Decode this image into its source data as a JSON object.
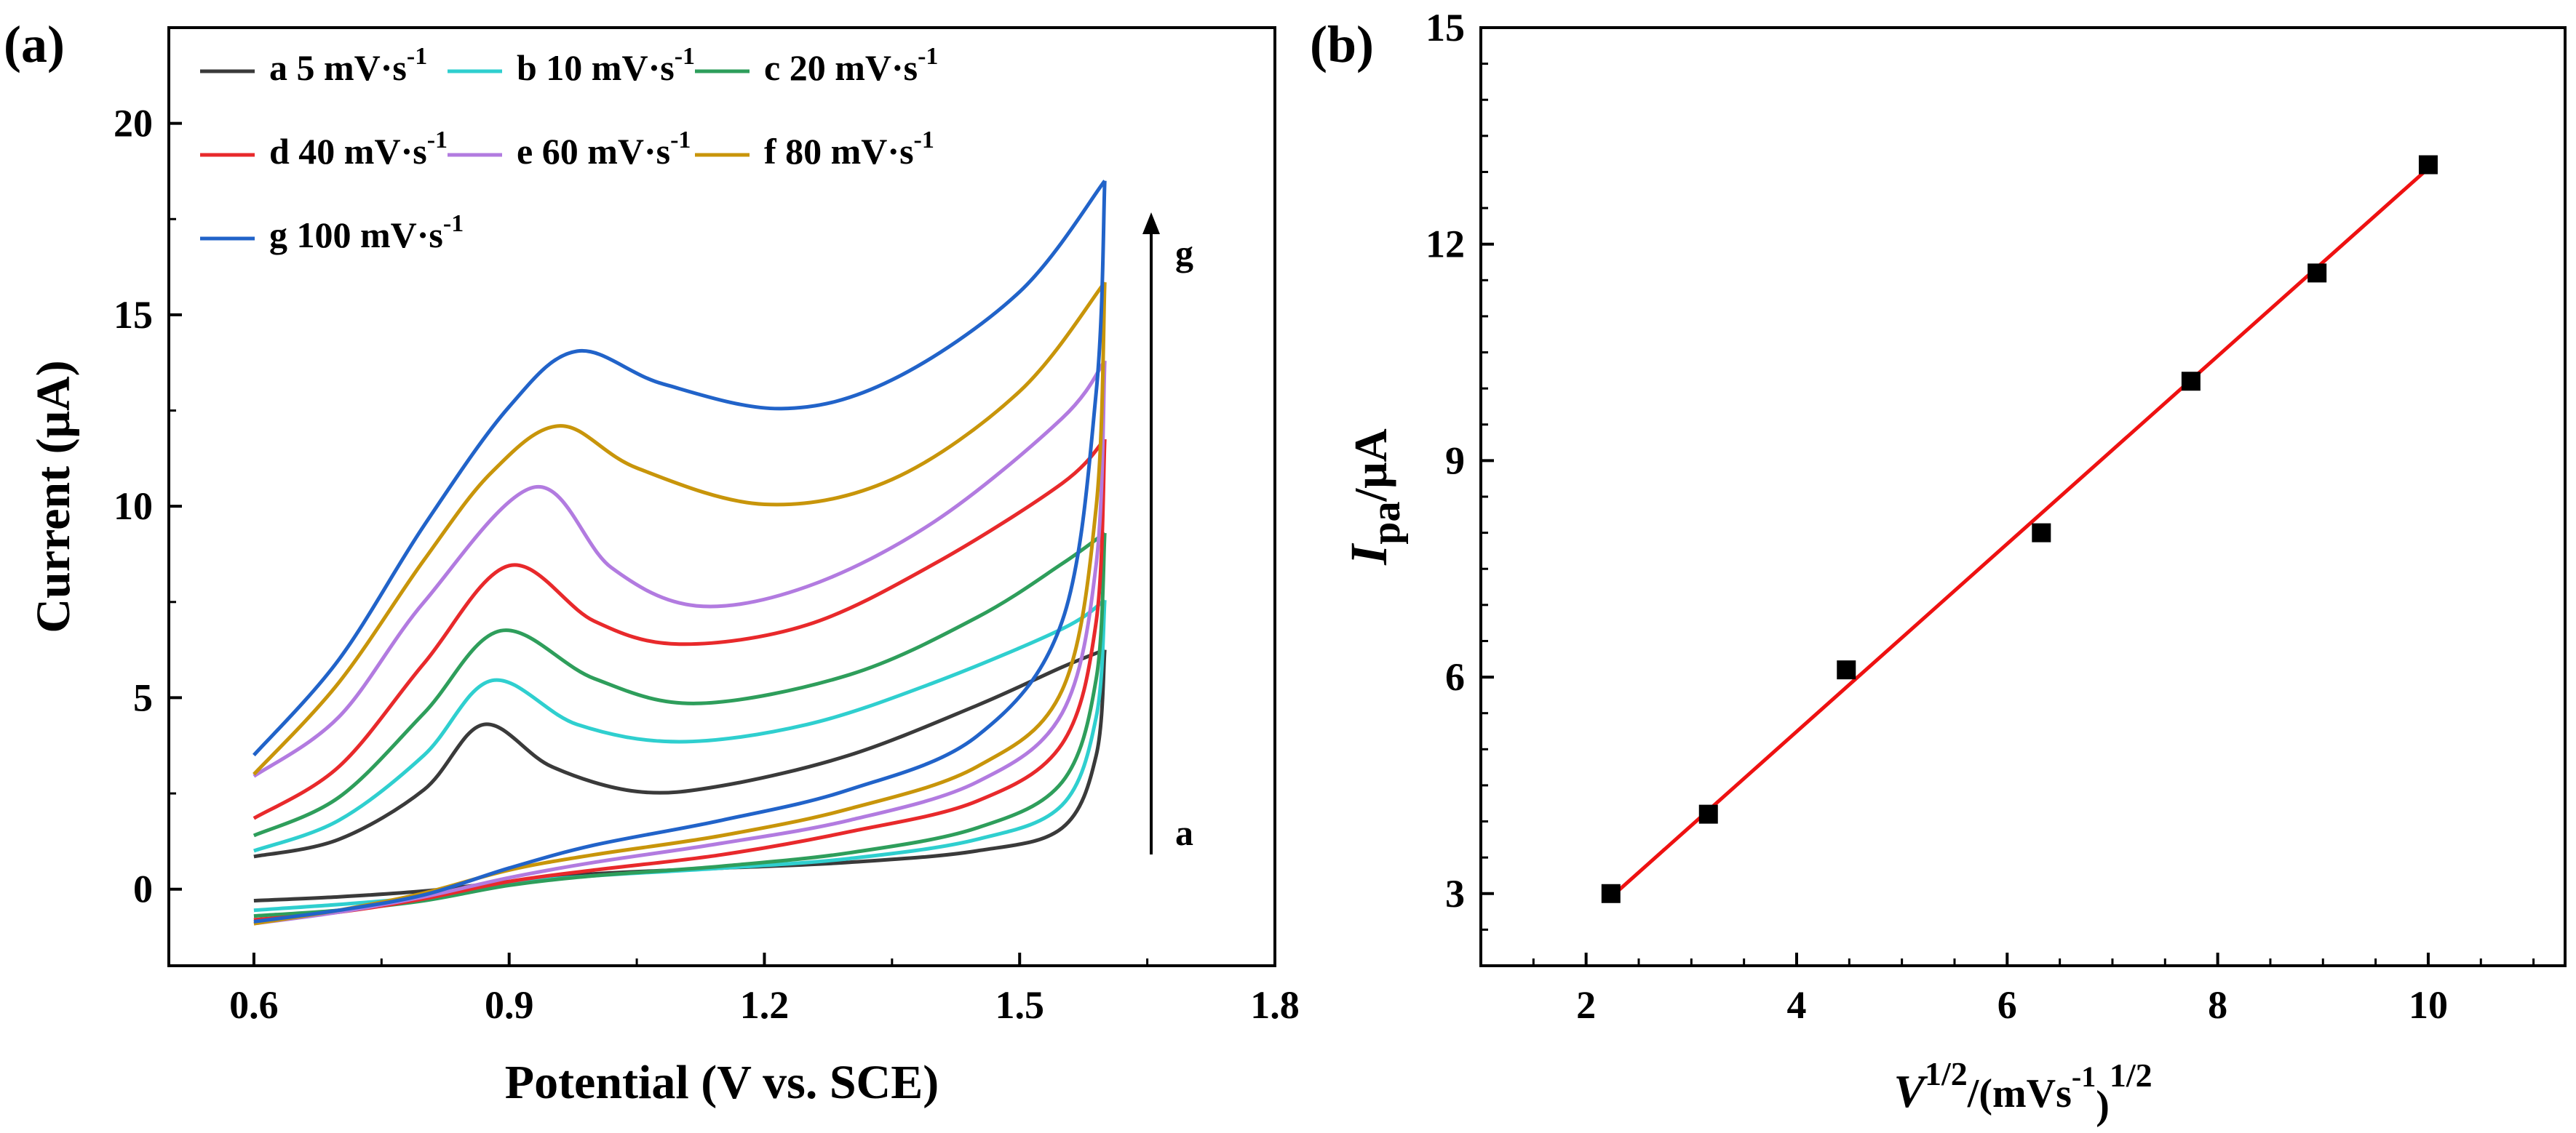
{
  "chart_data": [
    {
      "type": "line",
      "panel_label": "(a)",
      "xlabel": "Potential (V vs.  SCE)",
      "ylabel": "Current (μA)",
      "xlim": [
        0.5,
        1.8
      ],
      "ylim": [
        -2,
        22.5
      ],
      "xticks": [
        0.6,
        0.9,
        1.2,
        1.5,
        1.8
      ],
      "xtick_labels": [
        "0.6",
        "0.9",
        "1.2",
        "1.5",
        "1.8"
      ],
      "yticks": [
        0,
        5,
        10,
        15,
        20
      ],
      "ytick_labels": [
        "0",
        "5",
        "10",
        "15",
        "20"
      ],
      "annotation_top": "g",
      "annotation_bottom": "a",
      "legend_unit": "mV·s",
      "legend_exp": "-1",
      "series": [
        {
          "name": "a  5",
          "rate": 5,
          "color": "#3a3a3a",
          "anodic": [
            [
              0.6,
              0.85
            ],
            [
              0.7,
              1.3
            ],
            [
              0.8,
              2.6
            ],
            [
              0.87,
              4.3
            ],
            [
              0.95,
              3.2
            ],
            [
              1.05,
              2.55
            ],
            [
              1.15,
              2.7
            ],
            [
              1.3,
              3.5
            ],
            [
              1.45,
              4.8
            ],
            [
              1.55,
              5.8
            ],
            [
              1.6,
              6.25
            ]
          ],
          "cathodic": [
            [
              1.6,
              6.25
            ],
            [
              1.59,
              3.5
            ],
            [
              1.55,
              1.6
            ],
            [
              1.45,
              1.0
            ],
            [
              1.3,
              0.7
            ],
            [
              1.15,
              0.55
            ],
            [
              1.0,
              0.4
            ],
            [
              0.9,
              0.2
            ],
            [
              0.8,
              -0.05
            ],
            [
              0.7,
              -0.2
            ],
            [
              0.6,
              -0.3
            ]
          ]
        },
        {
          "name": "b 10",
          "rate": 10,
          "color": "#2fcfcf",
          "anodic": [
            [
              0.6,
              1.0
            ],
            [
              0.7,
              1.8
            ],
            [
              0.8,
              3.5
            ],
            [
              0.88,
              5.45
            ],
            [
              0.98,
              4.3
            ],
            [
              1.1,
              3.85
            ],
            [
              1.25,
              4.3
            ],
            [
              1.4,
              5.4
            ],
            [
              1.55,
              6.8
            ],
            [
              1.6,
              7.55
            ]
          ],
          "cathodic": [
            [
              1.6,
              7.55
            ],
            [
              1.59,
              4.5
            ],
            [
              1.55,
              2.2
            ],
            [
              1.45,
              1.3
            ],
            [
              1.3,
              0.8
            ],
            [
              1.15,
              0.55
            ],
            [
              1.0,
              0.35
            ],
            [
              0.9,
              0.15
            ],
            [
              0.8,
              -0.2
            ],
            [
              0.7,
              -0.4
            ],
            [
              0.6,
              -0.55
            ]
          ]
        },
        {
          "name": "c 20",
          "rate": 20,
          "color": "#2e9e5b",
          "anodic": [
            [
              0.6,
              1.4
            ],
            [
              0.7,
              2.4
            ],
            [
              0.8,
              4.6
            ],
            [
              0.89,
              6.75
            ],
            [
              1.0,
              5.5
            ],
            [
              1.12,
              4.85
            ],
            [
              1.3,
              5.6
            ],
            [
              1.45,
              7.1
            ],
            [
              1.55,
              8.5
            ],
            [
              1.6,
              9.3
            ]
          ],
          "cathodic": [
            [
              1.6,
              9.3
            ],
            [
              1.59,
              5.5
            ],
            [
              1.55,
              2.8
            ],
            [
              1.45,
              1.6
            ],
            [
              1.3,
              0.95
            ],
            [
              1.15,
              0.6
            ],
            [
              1.0,
              0.35
            ],
            [
              0.9,
              0.1
            ],
            [
              0.8,
              -0.3
            ],
            [
              0.7,
              -0.55
            ],
            [
              0.6,
              -0.7
            ]
          ]
        },
        {
          "name": "d 40",
          "rate": 40,
          "color": "#e8292b",
          "anodic": [
            [
              0.6,
              1.85
            ],
            [
              0.7,
              3.2
            ],
            [
              0.8,
              5.9
            ],
            [
              0.9,
              8.45
            ],
            [
              1.0,
              7.0
            ],
            [
              1.1,
              6.4
            ],
            [
              1.25,
              6.9
            ],
            [
              1.4,
              8.5
            ],
            [
              1.55,
              10.6
            ],
            [
              1.6,
              11.75
            ]
          ],
          "cathodic": [
            [
              1.6,
              11.75
            ],
            [
              1.59,
              7.0
            ],
            [
              1.55,
              3.8
            ],
            [
              1.45,
              2.3
            ],
            [
              1.3,
              1.5
            ],
            [
              1.15,
              0.9
            ],
            [
              1.0,
              0.5
            ],
            [
              0.9,
              0.2
            ],
            [
              0.8,
              -0.25
            ],
            [
              0.7,
              -0.6
            ],
            [
              0.6,
              -0.8
            ]
          ]
        },
        {
          "name": "e 60",
          "rate": 60,
          "color": "#b27be0",
          "anodic": [
            [
              0.6,
              2.95
            ],
            [
              0.7,
              4.5
            ],
            [
              0.8,
              7.5
            ],
            [
              0.93,
              10.5
            ],
            [
              1.02,
              8.4
            ],
            [
              1.12,
              7.4
            ],
            [
              1.25,
              7.9
            ],
            [
              1.4,
              9.6
            ],
            [
              1.55,
              12.3
            ],
            [
              1.6,
              13.8
            ]
          ],
          "cathodic": [
            [
              1.6,
              13.8
            ],
            [
              1.59,
              8.5
            ],
            [
              1.55,
              4.6
            ],
            [
              1.45,
              2.8
            ],
            [
              1.3,
              1.8
            ],
            [
              1.15,
              1.2
            ],
            [
              1.0,
              0.7
            ],
            [
              0.9,
              0.3
            ],
            [
              0.8,
              -0.2
            ],
            [
              0.7,
              -0.6
            ],
            [
              0.6,
              -0.9
            ]
          ]
        },
        {
          "name": "f 80",
          "rate": 80,
          "color": "#c8950a",
          "anodic": [
            [
              0.6,
              3.0
            ],
            [
              0.7,
              5.4
            ],
            [
              0.8,
              8.6
            ],
            [
              0.88,
              10.9
            ],
            [
              0.96,
              12.1
            ],
            [
              1.05,
              11.0
            ],
            [
              1.2,
              10.05
            ],
            [
              1.35,
              10.7
            ],
            [
              1.5,
              13.0
            ],
            [
              1.6,
              15.85
            ]
          ],
          "cathodic": [
            [
              1.6,
              15.85
            ],
            [
              1.59,
              10.0
            ],
            [
              1.55,
              5.2
            ],
            [
              1.45,
              3.2
            ],
            [
              1.3,
              2.1
            ],
            [
              1.15,
              1.4
            ],
            [
              1.0,
              0.9
            ],
            [
              0.9,
              0.5
            ],
            [
              0.8,
              -0.1
            ],
            [
              0.7,
              -0.55
            ],
            [
              0.6,
              -0.9
            ]
          ]
        },
        {
          "name": "g 100",
          "rate": 100,
          "color": "#2163c9",
          "anodic": [
            [
              0.6,
              3.5
            ],
            [
              0.7,
              6.0
            ],
            [
              0.8,
              9.5
            ],
            [
              0.9,
              12.6
            ],
            [
              0.98,
              14.05
            ],
            [
              1.08,
              13.2
            ],
            [
              1.22,
              12.55
            ],
            [
              1.35,
              13.3
            ],
            [
              1.5,
              15.6
            ],
            [
              1.6,
              18.5
            ]
          ],
          "cathodic": [
            [
              1.6,
              18.5
            ],
            [
              1.59,
              13.0
            ],
            [
              1.55,
              7.0
            ],
            [
              1.45,
              4.0
            ],
            [
              1.3,
              2.6
            ],
            [
              1.15,
              1.8
            ],
            [
              1.0,
              1.15
            ],
            [
              0.9,
              0.55
            ],
            [
              0.8,
              -0.15
            ],
            [
              0.7,
              -0.55
            ],
            [
              0.6,
              -0.85
            ]
          ]
        }
      ]
    },
    {
      "type": "scatter",
      "panel_label": "(b)",
      "xlabel_main": "V",
      "xlabel_exp": "1/2",
      "xlabel_unit": "/(mVs",
      "xlabel_unit_exp": "-1",
      "xlabel_close": ")",
      "xlabel_close_exp": "1/2",
      "ylabel_main": "I",
      "ylabel_sub": "pa",
      "ylabel_unit": "/μA",
      "xlim": [
        1,
        11.3
      ],
      "ylim": [
        2,
        15
      ],
      "xticks": [
        2,
        4,
        6,
        8,
        10
      ],
      "xtick_labels": [
        "2",
        "4",
        "6",
        "8",
        "10"
      ],
      "yticks": [
        3,
        6,
        9,
        12,
        15
      ],
      "ytick_labels": [
        "3",
        "6",
        "9",
        "12",
        "15"
      ],
      "x": [
        2.236,
        3.162,
        4.472,
        6.325,
        7.746,
        8.944,
        10.0
      ],
      "y": [
        3.0,
        4.1,
        6.1,
        8.0,
        10.1,
        11.6,
        13.1
      ],
      "fit": {
        "x": [
          2.236,
          10.0
        ],
        "y": [
          2.95,
          13.05
        ],
        "color": "#ee1111"
      },
      "marker_color": "#000000"
    }
  ]
}
